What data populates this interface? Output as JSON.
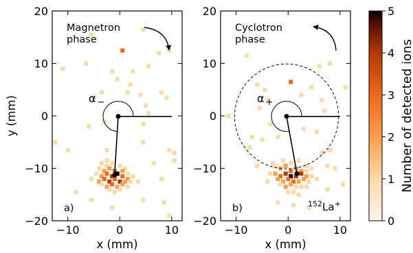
{
  "chart_data": [
    {
      "type": "heatmap",
      "panel_label": "a)",
      "phase_label": [
        "Magnetron",
        "phase"
      ],
      "angle_symbol": "α",
      "angle_subscript": "−",
      "xlabel": "x (mm)",
      "ylabel": "y (mm)",
      "xlim": [
        -13,
        12
      ],
      "ylim": [
        -20,
        20
      ],
      "xticks": [
        -10,
        0,
        10
      ],
      "yticks": [
        -20,
        -10,
        0,
        10,
        20
      ],
      "center": [
        -0.3,
        -0.1
      ],
      "reference_end": [
        10,
        -0.1
      ],
      "ion_spot": [
        -1.0,
        -11.3
      ],
      "rotation_arrow": "clockwise",
      "bins_mm": 0.75,
      "cells": [
        [
          -3.5,
          -9.0,
          1
        ],
        [
          -2.5,
          -9.5,
          1
        ],
        [
          -1.5,
          -9.0,
          1
        ],
        [
          0.0,
          -9.5,
          1
        ],
        [
          1.0,
          -10.0,
          1
        ],
        [
          -4.0,
          -10.0,
          1
        ],
        [
          -3.0,
          -10.5,
          2
        ],
        [
          -2.0,
          -10.0,
          2
        ],
        [
          -1.0,
          -10.5,
          3
        ],
        [
          0.5,
          -10.5,
          2
        ],
        [
          1.5,
          -11.0,
          1
        ],
        [
          -4.5,
          -11.0,
          1
        ],
        [
          -3.5,
          -11.5,
          2
        ],
        [
          -2.5,
          -11.0,
          3
        ],
        [
          -1.5,
          -11.5,
          4
        ],
        [
          -0.5,
          -11.0,
          5
        ],
        [
          0.5,
          -11.5,
          3
        ],
        [
          1.5,
          -12.0,
          2
        ],
        [
          2.5,
          -11.5,
          1
        ],
        [
          -4.0,
          -12.5,
          2
        ],
        [
          -3.0,
          -12.0,
          3
        ],
        [
          -2.0,
          -12.5,
          4
        ],
        [
          -1.0,
          -12.0,
          3
        ],
        [
          0.0,
          -12.5,
          4
        ],
        [
          1.0,
          -12.5,
          2
        ],
        [
          2.0,
          -12.5,
          1
        ],
        [
          -3.5,
          -13.0,
          1
        ],
        [
          -2.5,
          -13.5,
          2
        ],
        [
          -1.5,
          -13.0,
          3
        ],
        [
          -0.5,
          -13.5,
          2
        ],
        [
          0.5,
          -13.0,
          2
        ],
        [
          1.5,
          -13.5,
          1
        ],
        [
          -2.0,
          -14.0,
          1
        ],
        [
          -1.0,
          -14.5,
          1
        ],
        [
          0.0,
          -14.0,
          1
        ],
        [
          -5.5,
          -12.0,
          1
        ],
        [
          3.5,
          -12.5,
          1
        ],
        [
          -2.5,
          -8.5,
          1
        ],
        [
          0.5,
          12.5,
          3
        ],
        [
          -5.5,
          15.5,
          1
        ],
        [
          -11.0,
          9.0,
          1
        ],
        [
          -6.5,
          10.0,
          1
        ],
        [
          -1.5,
          8.5,
          1
        ],
        [
          2.5,
          8.5,
          1
        ],
        [
          5.5,
          9.5,
          1
        ],
        [
          7.5,
          12.0,
          1
        ],
        [
          9.5,
          12.5,
          1
        ],
        [
          4.5,
          16.5,
          1
        ],
        [
          1.5,
          4.5,
          1
        ],
        [
          4.0,
          4.0,
          1
        ],
        [
          5.0,
          2.0,
          1
        ],
        [
          5.5,
          0.5,
          1
        ],
        [
          4.5,
          -1.5,
          1
        ],
        [
          8.0,
          4.5,
          1
        ],
        [
          9.0,
          3.5,
          1
        ],
        [
          -5.0,
          3.5,
          1
        ],
        [
          -3.5,
          4.5,
          1
        ],
        [
          -0.5,
          7.0,
          1
        ],
        [
          2.0,
          6.0,
          1
        ],
        [
          -6.0,
          -2.0,
          1
        ],
        [
          -3.0,
          -1.0,
          1
        ],
        [
          -12.5,
          -5.0,
          1
        ],
        [
          -10.0,
          -6.5,
          1
        ],
        [
          -2.5,
          -6.5,
          1
        ],
        [
          4.5,
          -5.0,
          1
        ],
        [
          9.5,
          -6.5,
          1
        ],
        [
          10.5,
          -7.0,
          1
        ],
        [
          10.5,
          -8.5,
          1
        ],
        [
          6.5,
          -9.0,
          1
        ],
        [
          -8.5,
          -14.5,
          1
        ],
        [
          -5.5,
          -16.0,
          1
        ],
        [
          -1.5,
          -17.5,
          1
        ],
        [
          4.5,
          -16.0,
          1
        ],
        [
          8.5,
          -16.5,
          1
        ],
        [
          9.5,
          -19.0,
          1
        ],
        [
          8.0,
          -12.0,
          1
        ]
      ]
    },
    {
      "type": "heatmap",
      "panel_label": "b)",
      "phase_label": [
        "Cyclotron",
        "phase"
      ],
      "angle_symbol": "α",
      "angle_subscript": "+",
      "isotope_mass": "152",
      "isotope_symbol": "La",
      "isotope_charge": "+",
      "xlabel": "x (mm)",
      "ylabel": "",
      "xlim": [
        -13,
        12
      ],
      "ylim": [
        -20,
        20
      ],
      "xticks": [
        -10,
        0,
        10
      ],
      "yticks": [
        -20,
        -10,
        0,
        10,
        20
      ],
      "center": [
        -0.3,
        -0.1
      ],
      "reference_end": [
        10,
        -0.1
      ],
      "ion_spot": [
        1.7,
        -11.0
      ],
      "dashed_circle_radius": 10.0,
      "rotation_arrow": "counterclockwise",
      "bins_mm": 0.75,
      "cells": [
        [
          -1.0,
          -8.5,
          1
        ],
        [
          0.5,
          -9.0,
          1
        ],
        [
          2.0,
          -8.5,
          1
        ],
        [
          3.5,
          -9.5,
          1
        ],
        [
          -2.5,
          -9.5,
          1
        ],
        [
          -1.5,
          -10.0,
          2
        ],
        [
          -0.5,
          -9.5,
          2
        ],
        [
          0.5,
          -10.5,
          3
        ],
        [
          1.5,
          -10.0,
          2
        ],
        [
          2.5,
          -10.5,
          2
        ],
        [
          3.5,
          -10.5,
          1
        ],
        [
          4.5,
          -10.0,
          1
        ],
        [
          -3.5,
          -11.0,
          1
        ],
        [
          -2.5,
          -11.0,
          2
        ],
        [
          -1.5,
          -11.5,
          3
        ],
        [
          -0.5,
          -11.0,
          4
        ],
        [
          0.5,
          -11.5,
          5
        ],
        [
          1.5,
          -11.5,
          4
        ],
        [
          2.5,
          -11.0,
          4
        ],
        [
          3.5,
          -11.5,
          2
        ],
        [
          4.5,
          -11.5,
          1
        ],
        [
          -2.0,
          -12.0,
          2
        ],
        [
          -1.0,
          -12.5,
          2
        ],
        [
          0.0,
          -12.0,
          3
        ],
        [
          1.0,
          -12.5,
          3
        ],
        [
          2.0,
          -12.5,
          2
        ],
        [
          3.0,
          -12.0,
          2
        ],
        [
          4.0,
          -12.5,
          1
        ],
        [
          -1.5,
          -13.0,
          1
        ],
        [
          -0.5,
          -13.5,
          2
        ],
        [
          0.5,
          -13.0,
          2
        ],
        [
          1.5,
          -13.5,
          1
        ],
        [
          2.5,
          -13.5,
          1
        ],
        [
          3.5,
          -13.5,
          1
        ],
        [
          0.0,
          -14.5,
          1
        ],
        [
          1.0,
          -14.5,
          1
        ],
        [
          2.0,
          -15.0,
          1
        ],
        [
          -4.0,
          -12.5,
          1
        ],
        [
          5.5,
          -12.0,
          1
        ],
        [
          -3.0,
          -9.0,
          1
        ],
        [
          -8.0,
          11.5,
          1
        ],
        [
          0.5,
          6.5,
          3
        ],
        [
          6.0,
          9.5,
          1
        ],
        [
          8.0,
          10.0,
          1
        ],
        [
          11.0,
          5.5,
          1
        ],
        [
          -6.0,
          6.0,
          1
        ],
        [
          -4.5,
          5.0,
          1
        ],
        [
          2.5,
          4.0,
          1
        ],
        [
          4.5,
          5.5,
          1
        ],
        [
          6.5,
          3.0,
          1
        ],
        [
          7.0,
          1.0,
          1
        ],
        [
          -11.5,
          0.0,
          1
        ],
        [
          -5.5,
          1.5,
          1
        ],
        [
          -3.5,
          -1.5,
          1
        ],
        [
          -4.0,
          3.0,
          1
        ],
        [
          3.0,
          -2.5,
          1
        ],
        [
          -7.0,
          -4.0,
          1
        ],
        [
          -5.0,
          -4.5,
          1
        ],
        [
          -2.0,
          -4.0,
          1
        ],
        [
          5.5,
          -3.0,
          1
        ],
        [
          -7.5,
          -6.0,
          1
        ],
        [
          -6.0,
          -9.5,
          1
        ],
        [
          6.5,
          -7.0,
          1
        ],
        [
          8.0,
          -6.5,
          1
        ],
        [
          7.5,
          -9.5,
          1
        ],
        [
          9.0,
          -10.0,
          1
        ],
        [
          -2.0,
          -16.5,
          1
        ],
        [
          1.0,
          -17.0,
          1
        ],
        [
          4.0,
          -17.5,
          1
        ],
        [
          7.5,
          -14.0,
          1
        ],
        [
          10.5,
          -13.0,
          1
        ]
      ]
    }
  ],
  "colorbar": {
    "label": "Number of detected ions",
    "min": 0,
    "max": 5,
    "ticks": [
      0,
      1,
      2,
      3,
      4,
      5
    ],
    "colors": [
      "#fff5ea",
      "#fdd9a8",
      "#fb9e4d",
      "#ec6a1b",
      "#b33a07",
      "#6e1504",
      "#000000"
    ]
  }
}
